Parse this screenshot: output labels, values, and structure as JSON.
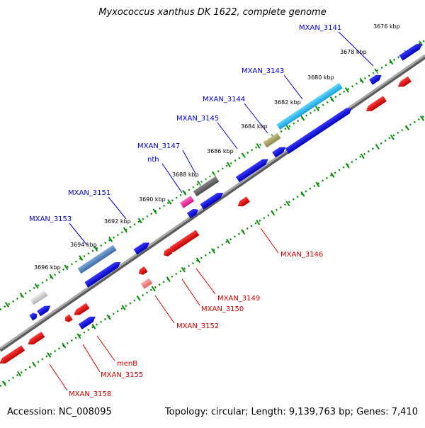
{
  "title": "Myxococcus xanthus DK 1622, complete genome",
  "footer": {
    "accession": "Accession: NC_008095",
    "summary": "Topology: circular; Length: 9,139,763 bp; Genes: 7,410"
  },
  "colors": {
    "forward": "#0000ee",
    "reverse": "#ee0000",
    "backbone": "#8a8a8a",
    "tick": "#0a8a0a",
    "label_forward": "#0000cc",
    "label_reverse": "#cc0000"
  },
  "ruler": {
    "start_kbp": 3676,
    "end_kbp": 3696,
    "step_kbp": 2,
    "labels": [
      "3676 kbp",
      "3678 kbp",
      "3680 kbp",
      "3682 kbp",
      "3684 kbp",
      "3686 kbp",
      "3688 kbp",
      "3690 kbp",
      "3692 kbp",
      "3694 kbp",
      "3696 kbp"
    ]
  },
  "gene_labels": {
    "forward": [
      "MXAN_3141",
      "MXAN_3143",
      "MXAN_3144",
      "MXAN_3145",
      "MXAN_3147",
      "nth",
      "MXAN_3151",
      "MXAN_3153"
    ],
    "reverse": [
      "MXAN_3146",
      "MXAN_3149",
      "MXAN_3150",
      "MXAN_3152",
      "menB",
      "MXAN_3155",
      "MXAN_3158"
    ]
  }
}
